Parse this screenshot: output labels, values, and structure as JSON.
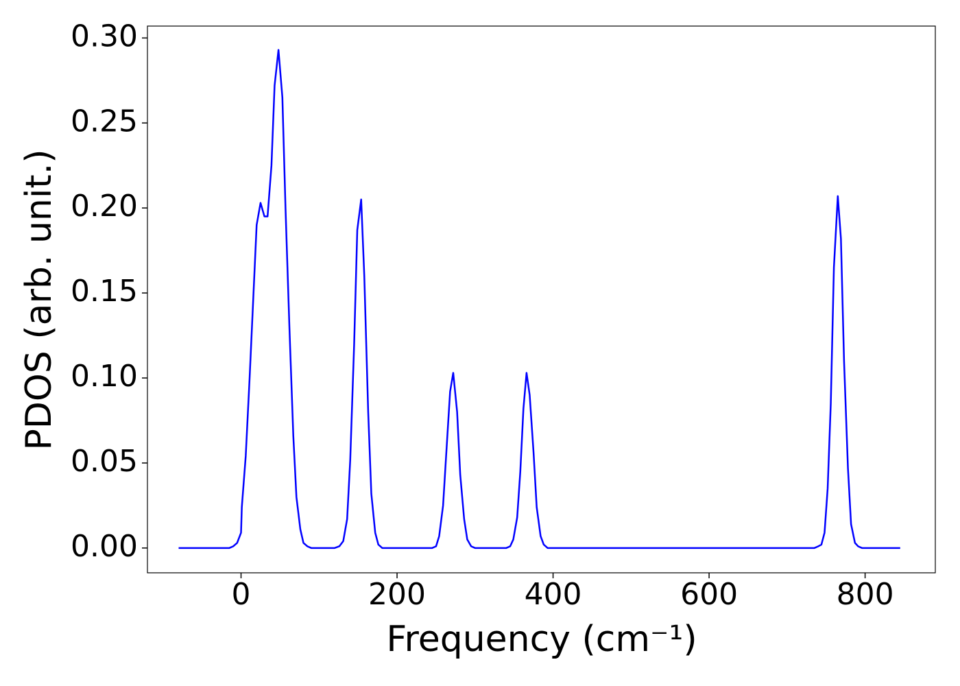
{
  "chart_data": {
    "type": "line",
    "xlabel": "Frequency (cm⁻¹)",
    "ylabel": "PDOS (arb. unit.)",
    "xlim": [
      -120,
      890
    ],
    "ylim": [
      -0.0146,
      0.307
    ],
    "xticks": [
      0,
      200,
      400,
      600,
      800
    ],
    "yticks": [
      {
        "value": 0,
        "label": "0.00"
      },
      0.05,
      {
        "value": 0.1,
        "label": "0.10"
      },
      0.15,
      {
        "value": 0.2,
        "label": "0.20"
      },
      0.25,
      {
        "value": 0.3,
        "label": "0.30"
      }
    ],
    "x": [
      -80,
      -15,
      -10,
      -5,
      0,
      1,
      6,
      11,
      16,
      20,
      25,
      30,
      34,
      39,
      43,
      48,
      53,
      57,
      62,
      67,
      71,
      76,
      80,
      85,
      90,
      120,
      126,
      131,
      136,
      140,
      145,
      149,
      154,
      158,
      163,
      167,
      172,
      176,
      181,
      245,
      250,
      254,
      259,
      263,
      268,
      272,
      277,
      281,
      286,
      290,
      295,
      300,
      340,
      345,
      349,
      354,
      358,
      362,
      366,
      370,
      375,
      379,
      384,
      388,
      393,
      735,
      740,
      744,
      748,
      752,
      756,
      760,
      765,
      769,
      773,
      778,
      782,
      787,
      791,
      796,
      845
    ],
    "series": [
      {
        "name": "PDOS",
        "color": "#0000ff",
        "values": [
          0,
          0,
          0.001,
          0.003,
          0.009,
          0.024,
          0.054,
          0.1,
          0.15,
          0.19,
          0.203,
          0.195,
          0.195,
          0.225,
          0.272,
          0.293,
          0.265,
          0.2,
          0.13,
          0.066,
          0.03,
          0.011,
          0.003,
          0.001,
          0,
          0,
          0.001,
          0.004,
          0.017,
          0.052,
          0.12,
          0.187,
          0.205,
          0.16,
          0.08,
          0.032,
          0.009,
          0.002,
          0,
          0,
          0.001,
          0.007,
          0.025,
          0.055,
          0.092,
          0.103,
          0.08,
          0.043,
          0.017,
          0.005,
          0.001,
          0,
          0,
          0.001,
          0.005,
          0.018,
          0.045,
          0.082,
          0.103,
          0.09,
          0.056,
          0.024,
          0.007,
          0.002,
          0,
          0,
          0.001,
          0.002,
          0.009,
          0.035,
          0.085,
          0.165,
          0.207,
          0.182,
          0.11,
          0.047,
          0.014,
          0.003,
          0.001,
          0,
          0
        ]
      }
    ]
  }
}
